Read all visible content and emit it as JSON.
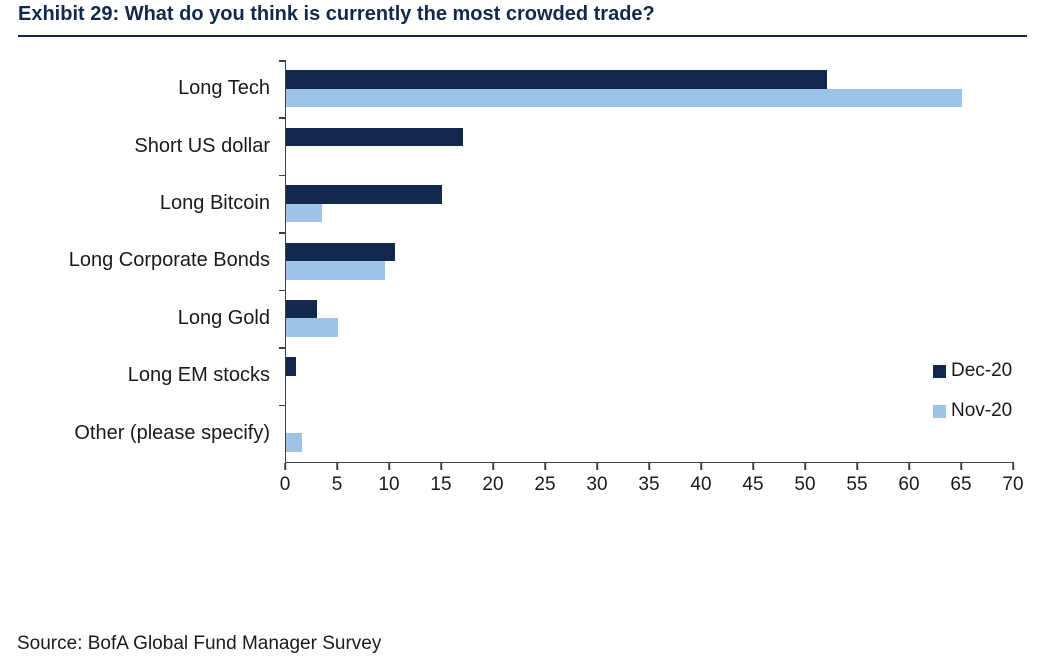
{
  "title": "Exhibit 29: What do you think is currently the most crowded trade?",
  "source": "Source: BofA Global Fund Manager Survey",
  "colors": {
    "title": "#12284C",
    "rule": "#12284C",
    "axis": "#404040",
    "dec_20": "#12284C",
    "nov_20": "#9DC3E6"
  },
  "legend": [
    {
      "label": "Dec-20",
      "color": "#12284C"
    },
    {
      "label": "Nov-20",
      "color": "#9DC3E6"
    }
  ],
  "chart_data": {
    "type": "bar",
    "orientation": "horizontal",
    "title": "Exhibit 29: What do you think is currently the most crowded trade?",
    "categories": [
      "Long Tech",
      "Short US dollar",
      "Long Bitcoin",
      "Long Corporate Bonds",
      "Long Gold",
      "Long EM stocks",
      "Other (please specify)"
    ],
    "series": [
      {
        "name": "Dec-20",
        "color": "#12284C",
        "values": [
          52,
          17,
          15,
          10.5,
          3,
          1,
          0
        ]
      },
      {
        "name": "Nov-20",
        "color": "#9DC3E6",
        "values": [
          65,
          0,
          3.5,
          9.5,
          5,
          0,
          1.5
        ]
      }
    ],
    "xlabel": "",
    "ylabel": "",
    "xlim": [
      0,
      70
    ],
    "xticks": [
      0,
      5,
      10,
      15,
      20,
      25,
      30,
      35,
      40,
      45,
      50,
      55,
      60,
      65,
      70
    ],
    "grid": false,
    "legend_position": "right"
  }
}
